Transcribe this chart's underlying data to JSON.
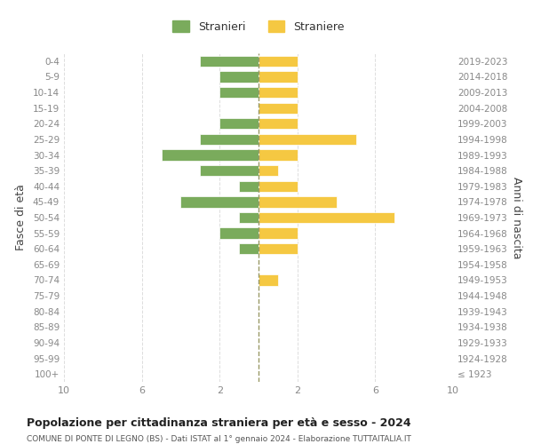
{
  "age_groups": [
    "100+",
    "95-99",
    "90-94",
    "85-89",
    "80-84",
    "75-79",
    "70-74",
    "65-69",
    "60-64",
    "55-59",
    "50-54",
    "45-49",
    "40-44",
    "35-39",
    "30-34",
    "25-29",
    "20-24",
    "15-19",
    "10-14",
    "5-9",
    "0-4"
  ],
  "birth_years": [
    "≤ 1923",
    "1924-1928",
    "1929-1933",
    "1934-1938",
    "1939-1943",
    "1944-1948",
    "1949-1953",
    "1954-1958",
    "1959-1963",
    "1964-1968",
    "1969-1973",
    "1974-1978",
    "1979-1983",
    "1984-1988",
    "1989-1993",
    "1994-1998",
    "1999-2003",
    "2004-2008",
    "2009-2013",
    "2014-2018",
    "2019-2023"
  ],
  "males": [
    0,
    0,
    0,
    0,
    0,
    0,
    0,
    0,
    1,
    2,
    1,
    4,
    1,
    3,
    5,
    3,
    2,
    0,
    2,
    2,
    3
  ],
  "females": [
    0,
    0,
    0,
    0,
    0,
    0,
    1,
    0,
    2,
    2,
    7,
    4,
    2,
    1,
    2,
    5,
    2,
    2,
    2,
    2,
    2
  ],
  "male_color": "#7aab5c",
  "female_color": "#f5c842",
  "title": "Popolazione per cittadinanza straniera per età e sesso - 2024",
  "subtitle": "COMUNE DI PONTE DI LEGNO (BS) - Dati ISTAT al 1° gennaio 2024 - Elaborazione TUTTAITALIA.IT",
  "ylabel_left": "Fasce di età",
  "ylabel_right": "Anni di nascita",
  "legend_male": "Stranieri",
  "legend_female": "Straniere",
  "xlim": 10,
  "bg_color": "#ffffff",
  "grid_color": "#dddddd",
  "axis_color": "#aaaaaa",
  "tick_label_color": "#888888",
  "title_color": "#222222",
  "subtitle_color": "#555555"
}
